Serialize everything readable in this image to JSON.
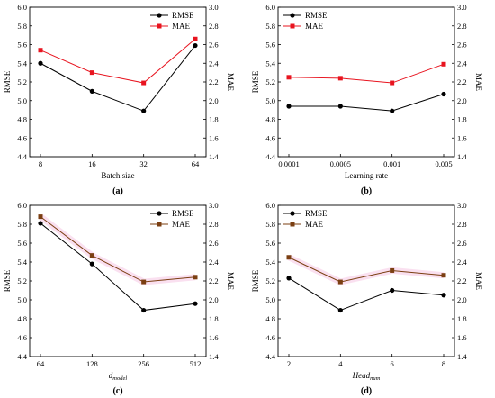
{
  "chart_data": [
    {
      "type": "line",
      "caption": "(a)",
      "xlabel": "Batch size",
      "xlabel_sub": "",
      "ylabel_left": "RMSE",
      "ylabel_right": "MAE",
      "categories": [
        "8",
        "16",
        "32",
        "64"
      ],
      "left_ylim": [
        4.4,
        6.0
      ],
      "left_ticks": [
        "4.4",
        "4.6",
        "4.8",
        "5.0",
        "5.2",
        "5.4",
        "5.6",
        "5.8",
        "6.0"
      ],
      "right_ylim": [
        1.4,
        3.0
      ],
      "right_ticks": [
        "1.4",
        "1.6",
        "1.8",
        "2.0",
        "2.2",
        "2.4",
        "2.6",
        "2.8",
        "3.0"
      ],
      "legend_position": "top-right",
      "series": [
        {
          "name": "RMSE",
          "axis": "left",
          "color": "#000000",
          "marker": "circle",
          "values": [
            5.4,
            5.1,
            4.89,
            5.59
          ]
        },
        {
          "name": "MAE",
          "axis": "right",
          "color": "#e8141f",
          "marker": "square",
          "values": [
            2.54,
            2.3,
            2.19,
            2.66
          ]
        }
      ]
    },
    {
      "type": "line",
      "caption": "(b)",
      "xlabel": "Learning rate",
      "xlabel_sub": "",
      "ylabel_left": "RMSE",
      "ylabel_right": "MAE",
      "categories": [
        "0.0001",
        "0.0005",
        "0.001",
        "0.005"
      ],
      "left_ylim": [
        4.4,
        6.0
      ],
      "left_ticks": [
        "4.4",
        "4.6",
        "4.8",
        "5.0",
        "5.2",
        "5.4",
        "5.6",
        "5.8",
        "6.0"
      ],
      "right_ylim": [
        1.4,
        3.0
      ],
      "right_ticks": [
        "1.4",
        "1.6",
        "1.8",
        "2.0",
        "2.2",
        "2.4",
        "2.6",
        "2.8",
        "3.0"
      ],
      "legend_position": "top-left",
      "series": [
        {
          "name": "RMSE",
          "axis": "left",
          "color": "#000000",
          "marker": "circle",
          "values": [
            4.94,
            4.94,
            4.89,
            5.07
          ]
        },
        {
          "name": "MAE",
          "axis": "right",
          "color": "#e8141f",
          "marker": "square",
          "values": [
            2.25,
            2.24,
            2.19,
            2.39
          ]
        }
      ]
    },
    {
      "type": "line",
      "caption": "(c)",
      "xlabel": "d",
      "xlabel_sub": "model",
      "ylabel_left": "RMSE",
      "ylabel_right": "MAE",
      "categories": [
        "64",
        "128",
        "256",
        "512"
      ],
      "left_ylim": [
        4.4,
        6.0
      ],
      "left_ticks": [
        "4.4",
        "4.6",
        "4.8",
        "5.0",
        "5.2",
        "5.4",
        "5.6",
        "5.8",
        "6.0"
      ],
      "right_ylim": [
        1.4,
        3.0
      ],
      "right_ticks": [
        "1.4",
        "1.6",
        "1.8",
        "2.0",
        "2.2",
        "2.4",
        "2.6",
        "2.8",
        "3.0"
      ],
      "legend_position": "top-right",
      "series": [
        {
          "name": "RMSE",
          "axis": "left",
          "color": "#000000",
          "marker": "circle",
          "values": [
            5.81,
            5.38,
            4.89,
            4.96
          ]
        },
        {
          "name": "MAE",
          "axis": "right",
          "color": "#7b3f12",
          "marker": "square",
          "values": [
            2.88,
            2.47,
            2.19,
            2.24
          ]
        }
      ]
    },
    {
      "type": "line",
      "caption": "(d)",
      "xlabel": "Head",
      "xlabel_sub": "num",
      "ylabel_left": "RMSE",
      "ylabel_right": "MAE",
      "categories": [
        "2",
        "4",
        "6",
        "8"
      ],
      "left_ylim": [
        4.4,
        6.0
      ],
      "left_ticks": [
        "4.4",
        "4.6",
        "4.8",
        "5.0",
        "5.2",
        "5.4",
        "5.6",
        "5.8",
        "6.0"
      ],
      "right_ylim": [
        1.4,
        3.0
      ],
      "right_ticks": [
        "1.4",
        "1.6",
        "1.8",
        "2.0",
        "2.2",
        "2.4",
        "2.6",
        "2.8",
        "3.0"
      ],
      "legend_position": "top-left",
      "series": [
        {
          "name": "RMSE",
          "axis": "left",
          "color": "#000000",
          "marker": "circle",
          "values": [
            5.23,
            4.89,
            5.1,
            5.05
          ]
        },
        {
          "name": "MAE",
          "axis": "right",
          "color": "#7b3f12",
          "marker": "square",
          "values": [
            2.45,
            2.19,
            2.31,
            2.26
          ]
        }
      ]
    }
  ]
}
